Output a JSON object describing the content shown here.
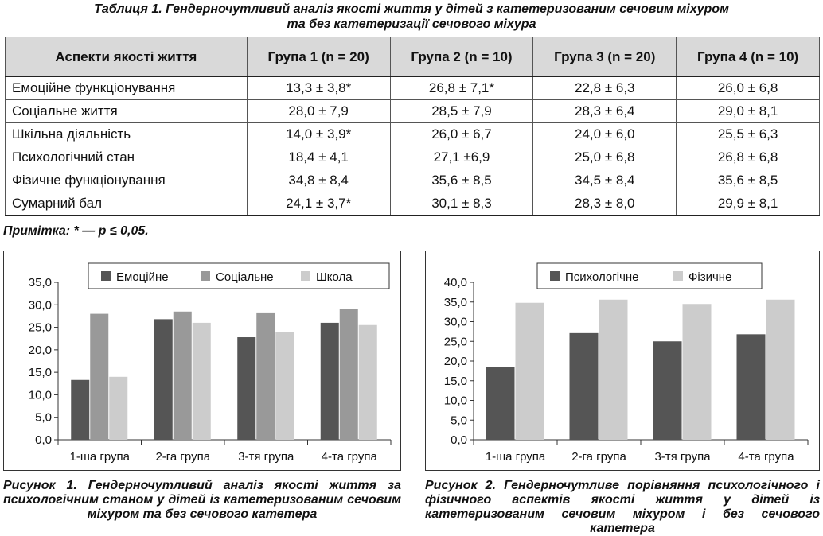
{
  "table": {
    "caption_line1": "Таблиця 1.  Гендерночутливий аналіз якості життя у дітей з катетеризованим сечовим міхуром",
    "caption_line2": "та без катетеризації сечового міхура",
    "headers": [
      "Аспекти якості життя",
      "Група 1 (n = 20)",
      "Група 2 (n = 10)",
      "Група 3 (n = 20)",
      "Група 4 (n = 10)"
    ],
    "rows": [
      [
        "Емоційне функціонування",
        "13,3 ± 3,8*",
        "26,8 ± 7,1*",
        "22,8 ± 6,3",
        "26,0 ± 6,8"
      ],
      [
        "Соціальне життя",
        "28,0 ± 7,9",
        "28,5 ± 7,9",
        "28,3 ± 6,4",
        "29,0 ± 8,1"
      ],
      [
        "Шкільна діяльність",
        "14,0 ± 3,9*",
        "26,0 ± 6,7",
        "24,0 ± 6,0",
        "25,5 ± 6,3"
      ],
      [
        "Психологічний стан",
        "18,4 ± 4,1",
        "27,1 ±6,9",
        "25,0 ± 6,8",
        "26,8 ± 6,8"
      ],
      [
        "Фізичне функціонування",
        "34,8 ± 8,4",
        "35,6 ± 8,5",
        "34,5 ± 8,4",
        "35,6 ± 8,5"
      ],
      [
        "Сумарний бал",
        "24,1 ± 3,7*",
        "30,1 ± 8,3",
        "28,3 ± 8,0",
        "29,9 ± 8,1"
      ]
    ],
    "note": "Примітка: * — p ≤ 0,05."
  },
  "figures": {
    "fig1_caption": "Рисунок 1. Гендерночутливий аналіз якості життя за психологічним станом у дітей із катетеризованим сечовим міхуром та без сечового катетера",
    "fig2_caption": "Рисунок 2. Гендерночутливе порівняння психологічного і фізичного аспектів якості життя у дітей із катетеризованим сечовим міхуром і без сечового катетера"
  },
  "chart_data": [
    {
      "type": "bar",
      "categories": [
        "1-ша група",
        "2-га група",
        "3-тя група",
        "4-та група"
      ],
      "series": [
        {
          "name": "Емоційне",
          "values": [
            13.3,
            26.8,
            22.8,
            26.0
          ],
          "color": "#555555"
        },
        {
          "name": "Соціальне",
          "values": [
            28.0,
            28.5,
            28.3,
            29.0
          ],
          "color": "#999999"
        },
        {
          "name": "Школа",
          "values": [
            14.0,
            26.0,
            24.0,
            25.5
          ],
          "color": "#cccccc"
        }
      ],
      "ylim": [
        0,
        35
      ],
      "yticks": [
        "0,0",
        "5,0",
        "10,0",
        "15,0",
        "20,0",
        "25,0",
        "30,0",
        "35,0"
      ],
      "grid": false,
      "legend": "top"
    },
    {
      "type": "bar",
      "categories": [
        "1-ша група",
        "2-га група",
        "3-тя група",
        "4-та група"
      ],
      "series": [
        {
          "name": "Психологічне",
          "values": [
            18.4,
            27.1,
            25.0,
            26.8
          ],
          "color": "#555555"
        },
        {
          "name": "Фізичне",
          "values": [
            34.8,
            35.6,
            34.5,
            35.6
          ],
          "color": "#cccccc"
        }
      ],
      "ylim": [
        0,
        40
      ],
      "yticks": [
        "0,0",
        "5,0",
        "10,0",
        "15,0",
        "20,0",
        "25,0",
        "30,0",
        "35,0",
        "40,0"
      ],
      "grid": false,
      "legend": "top"
    }
  ]
}
